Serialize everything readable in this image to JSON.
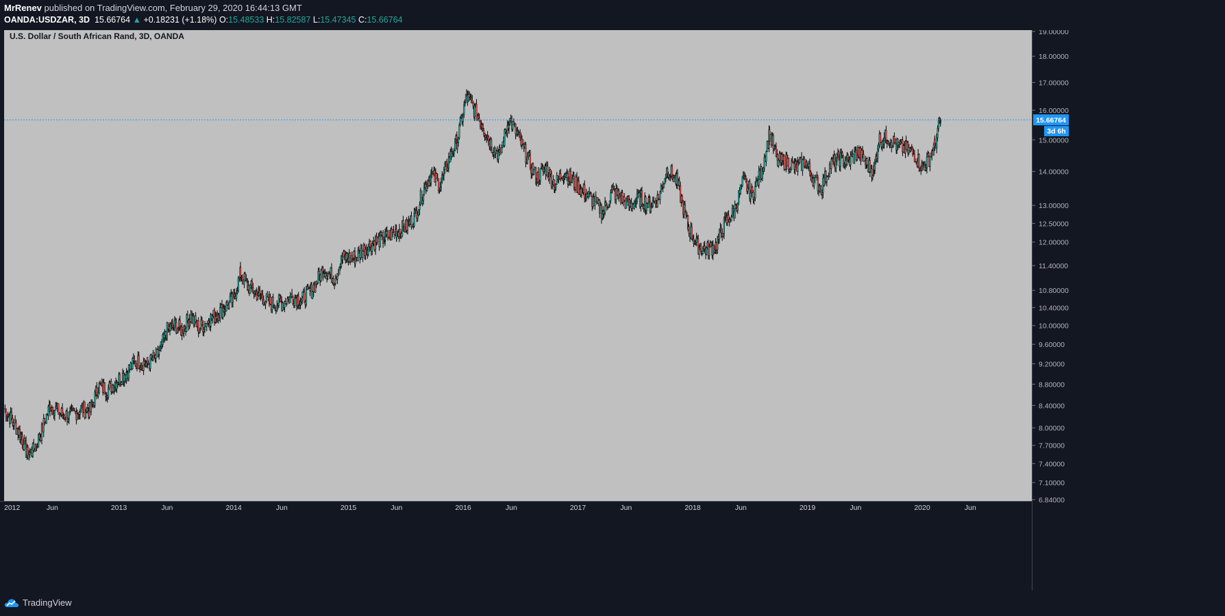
{
  "header": {
    "author": "MrRenev",
    "published_text": "published on TradingView.com, February 29, 2020 16:44:13 GMT",
    "symbol": "OANDA:USDZAR, 3D",
    "last": "15.66764",
    "change_arrow": "▲",
    "change": "+0.18231 (+1.18%)",
    "o_label": "O:",
    "o_value": "15.48533",
    "h_label": "H:",
    "h_value": "15.82587",
    "l_label": "L:",
    "l_value": "15.47345",
    "c_label": "C:",
    "c_value": "15.66764"
  },
  "chart_data": {
    "type": "candlestick",
    "title": "U.S. Dollar / South African Rand, 3D, OANDA",
    "scale": "log",
    "grid": false,
    "background": "#c0c0c0",
    "up_color": "#26a69a",
    "down_color": "#ef5350",
    "wick_color": "#000000",
    "current_price": 15.66764,
    "current_price_label": "15.66764",
    "countdown_label": "3d 6h",
    "price_line_color": "#2196f3",
    "ylim": [
      6.84,
      19.0
    ],
    "x_range": [
      2012.0,
      2021.0
    ],
    "y_ticks": [
      "19.00000",
      "18.00000",
      "17.00000",
      "16.00000",
      "15.00000",
      "14.00000",
      "13.00000",
      "12.50000",
      "12.00000",
      "11.40000",
      "10.80000",
      "10.40000",
      "10.00000",
      "9.60000",
      "9.20000",
      "8.80000",
      "8.40000",
      "8.00000",
      "7.70000",
      "7.40000",
      "7.10000",
      "6.84000"
    ],
    "x_ticks": [
      {
        "label": "2012",
        "t": 2012.0
      },
      {
        "label": "Jun",
        "t": 2012.42
      },
      {
        "label": "2013",
        "t": 2013.0
      },
      {
        "label": "Jun",
        "t": 2013.42
      },
      {
        "label": "2014",
        "t": 2014.0
      },
      {
        "label": "Jun",
        "t": 2014.42
      },
      {
        "label": "2015",
        "t": 2015.0
      },
      {
        "label": "Jun",
        "t": 2015.42
      },
      {
        "label": "2016",
        "t": 2016.0
      },
      {
        "label": "Jun",
        "t": 2016.42
      },
      {
        "label": "2017",
        "t": 2017.0
      },
      {
        "label": "Jun",
        "t": 2017.42
      },
      {
        "label": "2018",
        "t": 2018.0
      },
      {
        "label": "Jun",
        "t": 2018.42
      },
      {
        "label": "2019",
        "t": 2019.0
      },
      {
        "label": "Jun",
        "t": 2019.42
      },
      {
        "label": "2020",
        "t": 2020.0
      },
      {
        "label": "Jun",
        "t": 2020.42
      }
    ],
    "series": [
      {
        "values": [
          [
            2012.0,
            8.35
          ],
          [
            2012.08,
            8.1
          ],
          [
            2012.15,
            7.85
          ],
          [
            2012.2,
            7.55
          ],
          [
            2012.25,
            7.6
          ],
          [
            2012.32,
            7.9
          ],
          [
            2012.4,
            8.4
          ],
          [
            2012.5,
            8.25
          ],
          [
            2012.58,
            8.2
          ],
          [
            2012.67,
            8.35
          ],
          [
            2012.75,
            8.3
          ],
          [
            2012.82,
            8.75
          ],
          [
            2012.9,
            8.7
          ],
          [
            2013.0,
            8.9
          ],
          [
            2013.07,
            9.05
          ],
          [
            2013.15,
            9.25
          ],
          [
            2013.25,
            9.2
          ],
          [
            2013.35,
            9.4
          ],
          [
            2013.42,
            9.9
          ],
          [
            2013.5,
            10.0
          ],
          [
            2013.55,
            9.9
          ],
          [
            2013.62,
            10.2
          ],
          [
            2013.7,
            9.95
          ],
          [
            2013.8,
            10.15
          ],
          [
            2013.92,
            10.4
          ],
          [
            2014.0,
            10.6
          ],
          [
            2014.06,
            11.2
          ],
          [
            2014.12,
            10.9
          ],
          [
            2014.22,
            10.7
          ],
          [
            2014.32,
            10.5
          ],
          [
            2014.42,
            10.5
          ],
          [
            2014.5,
            10.65
          ],
          [
            2014.6,
            10.6
          ],
          [
            2014.68,
            10.8
          ],
          [
            2014.78,
            11.3
          ],
          [
            2014.88,
            11.1
          ],
          [
            2014.95,
            11.6
          ],
          [
            2015.06,
            11.6
          ],
          [
            2015.15,
            11.85
          ],
          [
            2015.22,
            12.0
          ],
          [
            2015.32,
            12.1
          ],
          [
            2015.42,
            12.3
          ],
          [
            2015.5,
            12.4
          ],
          [
            2015.58,
            12.7
          ],
          [
            2015.66,
            13.5
          ],
          [
            2015.72,
            13.9
          ],
          [
            2015.8,
            13.6
          ],
          [
            2015.88,
            14.4
          ],
          [
            2015.95,
            15.0
          ],
          [
            2016.03,
            16.5
          ],
          [
            2016.1,
            16.0
          ],
          [
            2016.18,
            15.4
          ],
          [
            2016.25,
            14.8
          ],
          [
            2016.32,
            14.5
          ],
          [
            2016.4,
            15.7
          ],
          [
            2016.48,
            15.1
          ],
          [
            2016.56,
            14.4
          ],
          [
            2016.64,
            13.8
          ],
          [
            2016.72,
            14.1
          ],
          [
            2016.8,
            13.6
          ],
          [
            2016.88,
            14.0
          ],
          [
            2016.95,
            13.7
          ],
          [
            2017.05,
            13.4
          ],
          [
            2017.14,
            13.1
          ],
          [
            2017.22,
            12.8
          ],
          [
            2017.3,
            13.4
          ],
          [
            2017.38,
            13.2
          ],
          [
            2017.45,
            13.0
          ],
          [
            2017.55,
            13.2
          ],
          [
            2017.62,
            13.0
          ],
          [
            2017.7,
            13.2
          ],
          [
            2017.78,
            14.1
          ],
          [
            2017.86,
            13.7
          ],
          [
            2017.96,
            12.4
          ],
          [
            2018.04,
            11.9
          ],
          [
            2018.12,
            11.8
          ],
          [
            2018.2,
            11.9
          ],
          [
            2018.28,
            12.5
          ],
          [
            2018.36,
            12.8
          ],
          [
            2018.44,
            13.7
          ],
          [
            2018.52,
            13.3
          ],
          [
            2018.6,
            14.0
          ],
          [
            2018.67,
            15.2
          ],
          [
            2018.74,
            14.3
          ],
          [
            2018.82,
            14.3
          ],
          [
            2018.9,
            14.1
          ],
          [
            2018.98,
            14.3
          ],
          [
            2019.05,
            13.8
          ],
          [
            2019.12,
            13.5
          ],
          [
            2019.2,
            14.2
          ],
          [
            2019.28,
            14.4
          ],
          [
            2019.36,
            14.3
          ],
          [
            2019.44,
            14.6
          ],
          [
            2019.52,
            14.2
          ],
          [
            2019.58,
            14.0
          ],
          [
            2019.62,
            15.0
          ],
          [
            2019.7,
            15.1
          ],
          [
            2019.78,
            14.8
          ],
          [
            2019.86,
            14.7
          ],
          [
            2019.94,
            14.5
          ],
          [
            2020.0,
            14.1
          ],
          [
            2020.06,
            14.4
          ],
          [
            2020.11,
            14.8
          ],
          [
            2020.16,
            15.67
          ]
        ]
      }
    ]
  }
}
